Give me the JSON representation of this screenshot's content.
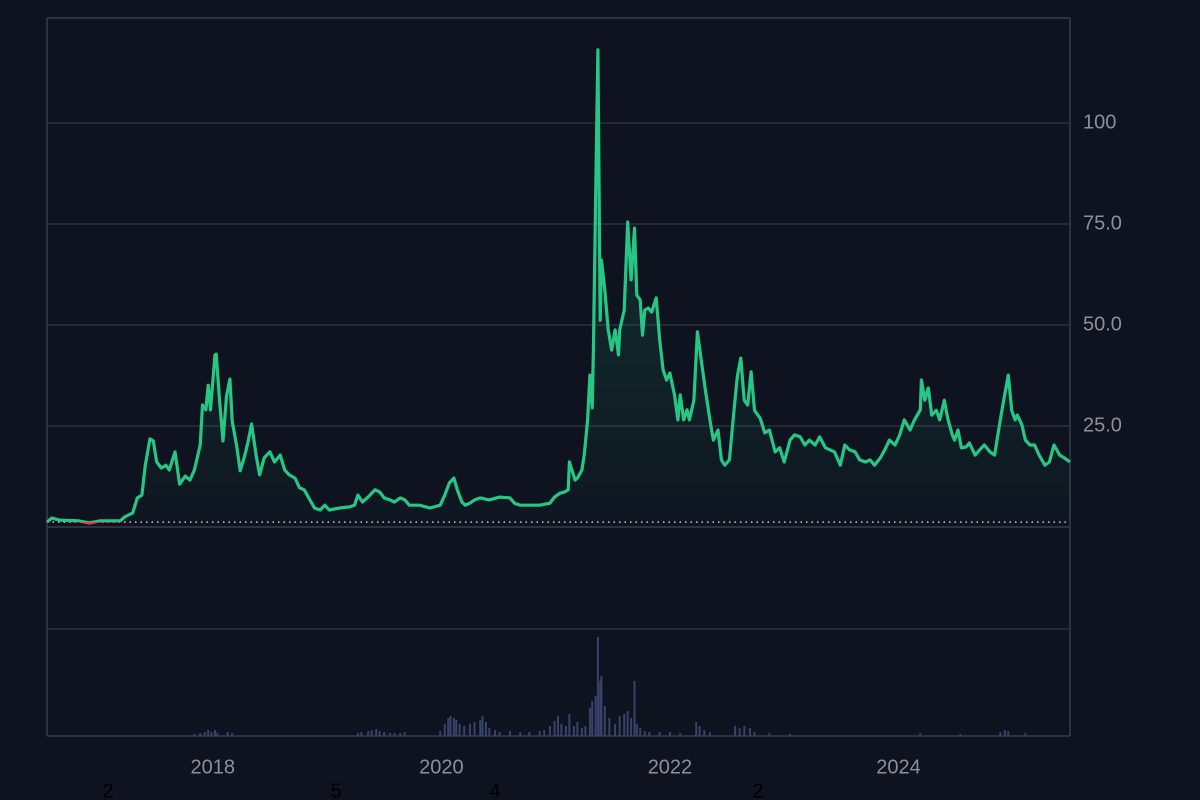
{
  "chart_data": {
    "type": "line",
    "x": [
      2016.55,
      2016.59,
      2016.66,
      2016.83,
      2016.92,
      2017.01,
      2017.19,
      2017.23,
      2017.3,
      2017.34,
      2017.38,
      2017.41,
      2017.45,
      2017.48,
      2017.51,
      2017.55,
      2017.59,
      2017.62,
      2017.67,
      2017.71,
      2017.76,
      2017.8,
      2017.84,
      2017.89,
      2017.91,
      2017.94,
      2017.96,
      2017.98,
      2018.02,
      2018.03,
      2018.06,
      2018.09,
      2018.12,
      2018.15,
      2018.17,
      2018.21,
      2018.24,
      2018.28,
      2018.31,
      2018.34,
      2018.38,
      2018.41,
      2018.45,
      2018.5,
      2018.54,
      2018.59,
      2018.63,
      2018.67,
      2018.72,
      2018.76,
      2018.8,
      2018.85,
      2018.89,
      2018.94,
      2018.98,
      2019.02,
      2019.11,
      2019.2,
      2019.24,
      2019.27,
      2019.31,
      2019.37,
      2019.42,
      2019.46,
      2019.5,
      2019.55,
      2019.59,
      2019.64,
      2019.68,
      2019.72,
      2019.81,
      2019.9,
      2019.99,
      2020.03,
      2020.07,
      2020.11,
      2020.14,
      2020.18,
      2020.21,
      2020.25,
      2020.29,
      2020.34,
      2020.42,
      2020.51,
      2020.6,
      2020.64,
      2020.69,
      2020.77,
      2020.86,
      2020.95,
      2020.99,
      2021.04,
      2021.08,
      2021.11,
      2021.12,
      2021.17,
      2021.19,
      2021.23,
      2021.25,
      2021.28,
      2021.3,
      2021.32,
      2021.33,
      2021.35,
      2021.37,
      2021.39,
      2021.4,
      2021.43,
      2021.46,
      2021.49,
      2021.52,
      2021.55,
      2021.56,
      2021.6,
      2021.63,
      2021.66,
      2021.69,
      2021.71,
      2021.74,
      2021.76,
      2021.78,
      2021.81,
      2021.84,
      2021.88,
      2021.91,
      2021.94,
      2021.97,
      2022.0,
      2022.04,
      2022.07,
      2022.09,
      2022.12,
      2022.15,
      2022.17,
      2022.21,
      2022.24,
      2022.28,
      2022.31,
      2022.35,
      2022.38,
      2022.42,
      2022.45,
      2022.48,
      2022.52,
      2022.56,
      2022.59,
      2022.62,
      2022.65,
      2022.68,
      2022.71,
      2022.74,
      2022.79,
      2022.83,
      2022.87,
      2022.92,
      2022.96,
      2023.0,
      2023.05,
      2023.09,
      2023.14,
      2023.18,
      2023.22,
      2023.27,
      2023.31,
      2023.36,
      2023.4,
      2023.44,
      2023.49,
      2023.53,
      2023.57,
      2023.62,
      2023.66,
      2023.71,
      2023.75,
      2023.79,
      2023.84,
      2023.88,
      2023.92,
      2023.97,
      2024.01,
      2024.05,
      2024.1,
      2024.14,
      2024.19,
      2024.2,
      2024.23,
      2024.26,
      2024.29,
      2024.33,
      2024.36,
      2024.4,
      2024.43,
      2024.47,
      2024.49,
      2024.52,
      2024.55,
      2024.59,
      2024.62,
      2024.67,
      2024.71,
      2024.75,
      2024.8,
      2024.84,
      2024.89,
      2024.92,
      2024.96,
      2024.99,
      2025.02,
      2025.04,
      2025.08,
      2025.11,
      2025.15,
      2025.19,
      2025.23,
      2025.28,
      2025.32,
      2025.36,
      2025.41,
      2025.45,
      2025.5
    ],
    "values": [
      1.2,
      2.2,
      1.7,
      1.5,
      1.0,
      1.5,
      1.5,
      2.5,
      3.5,
      7.2,
      7.9,
      15.3,
      21.8,
      21.3,
      16.1,
      14.6,
      15.3,
      14.1,
      18.6,
      10.6,
      12.6,
      11.6,
      14.1,
      20.3,
      30.2,
      29.0,
      35.1,
      29.0,
      42.6,
      42.8,
      31.2,
      21.3,
      32.4,
      36.6,
      26.2,
      20.0,
      13.9,
      17.6,
      21.3,
      25.5,
      17.6,
      12.9,
      17.1,
      18.6,
      16.1,
      17.8,
      14.1,
      12.9,
      12.1,
      9.7,
      9.2,
      6.7,
      4.7,
      4.2,
      5.4,
      4.2,
      4.7,
      5.0,
      5.4,
      7.9,
      6.2,
      7.7,
      9.2,
      8.7,
      7.2,
      6.7,
      6.2,
      7.2,
      6.7,
      5.4,
      5.4,
      4.7,
      5.4,
      7.9,
      10.9,
      12.1,
      9.2,
      6.2,
      5.4,
      5.9,
      6.7,
      7.2,
      6.7,
      7.4,
      7.2,
      5.9,
      5.4,
      5.4,
      5.4,
      5.9,
      7.4,
      8.4,
      8.7,
      9.2,
      16.1,
      11.6,
      12.1,
      14.1,
      17.8,
      26.5,
      37.6,
      29.5,
      43.8,
      80.9,
      118.1,
      51.2,
      66.1,
      58.7,
      48.8,
      43.8,
      48.8,
      42.6,
      48.8,
      53.7,
      75.5,
      61.2,
      74.0,
      57.4,
      56.2,
      47.5,
      53.7,
      54.2,
      53.2,
      56.7,
      46.3,
      38.9,
      36.4,
      38.1,
      32.7,
      26.5,
      32.7,
      26.5,
      29.0,
      26.5,
      31.4,
      48.3,
      40.1,
      33.9,
      26.5,
      21.5,
      24.0,
      16.6,
      15.3,
      16.6,
      28.9,
      37.4,
      41.8,
      31.4,
      30.2,
      38.4,
      28.9,
      26.9,
      23.3,
      24.0,
      18.6,
      19.6,
      16.1,
      21.5,
      22.8,
      22.3,
      20.3,
      21.5,
      20.3,
      22.3,
      19.6,
      19.1,
      18.6,
      15.3,
      20.3,
      19.1,
      18.6,
      16.6,
      16.1,
      16.6,
      15.3,
      17.1,
      19.1,
      21.5,
      20.3,
      22.8,
      26.5,
      24.0,
      26.5,
      29.0,
      36.4,
      31.4,
      34.4,
      27.7,
      28.9,
      26.5,
      31.4,
      26.9,
      22.8,
      21.5,
      24.0,
      19.6,
      19.8,
      20.8,
      17.8,
      19.1,
      20.3,
      18.6,
      17.8,
      26.5,
      31.4,
      37.6,
      28.9,
      26.5,
      27.7,
      25.2,
      21.5,
      20.3,
      20.3,
      17.8,
      15.3,
      16.1,
      20.3,
      17.8,
      17.1,
      16.1
    ],
    "color": "#26c685",
    "color_below": "#d9434f",
    "baseline": 1.2,
    "xlim": [
      2016.55,
      2025.5
    ],
    "xticks": [
      2018,
      2020,
      2022,
      2024
    ],
    "ylim": [
      0,
      126
    ],
    "yticks": [
      {
        "value": 25,
        "label": "25.0"
      },
      {
        "value": 50,
        "label": "50.0"
      },
      {
        "value": 75,
        "label": "75.0"
      },
      100
    ],
    "grid": true,
    "volume": {
      "color": "#39426b",
      "ylim": [
        0,
        107
      ],
      "x": [
        2017.84,
        2017.89,
        2017.93,
        2017.96,
        2017.99,
        2018.02,
        2018.04,
        2018.13,
        2018.17,
        2019.27,
        2019.3,
        2019.36,
        2019.39,
        2019.43,
        2019.46,
        2019.5,
        2019.55,
        2019.59,
        2019.64,
        2019.68,
        2019.99,
        2020.03,
        2020.06,
        2020.08,
        2020.11,
        2020.13,
        2020.16,
        2020.2,
        2020.25,
        2020.29,
        2020.34,
        2020.36,
        2020.39,
        2020.42,
        2020.47,
        2020.51,
        2020.6,
        2020.69,
        2020.77,
        2020.86,
        2020.9,
        2020.95,
        2020.99,
        2021.02,
        2021.05,
        2021.09,
        2021.12,
        2021.16,
        2021.19,
        2021.23,
        2021.26,
        2021.3,
        2021.32,
        2021.35,
        2021.37,
        2021.39,
        2021.4,
        2021.43,
        2021.47,
        2021.52,
        2021.56,
        2021.6,
        2021.63,
        2021.66,
        2021.69,
        2021.71,
        2021.74,
        2021.78,
        2021.82,
        2021.91,
        2022.0,
        2022.09,
        2022.23,
        2022.26,
        2022.3,
        2022.35,
        2022.57,
        2022.61,
        2022.65,
        2022.7,
        2022.74,
        2022.87,
        2023.05,
        2024.19,
        2024.54,
        2024.89,
        2024.93,
        2024.96,
        2025.11
      ],
      "values": [
        2,
        3,
        4,
        6,
        4,
        6,
        3,
        4,
        3,
        3,
        4,
        5,
        6,
        7,
        5,
        4,
        3,
        3,
        3,
        4,
        5,
        12,
        18,
        20,
        18,
        16,
        12,
        10,
        12,
        14,
        16,
        20,
        14,
        8,
        6,
        4,
        5,
        4,
        4,
        5,
        6,
        10,
        15,
        20,
        12,
        10,
        22,
        10,
        14,
        8,
        10,
        28,
        35,
        40,
        99,
        55,
        60,
        30,
        18,
        12,
        20,
        22,
        25,
        18,
        55,
        12,
        8,
        5,
        4,
        4,
        4,
        3,
        14,
        10,
        6,
        4,
        10,
        8,
        10,
        8,
        4,
        3,
        2,
        3,
        2,
        4,
        6,
        5,
        3
      ]
    },
    "bottom_labels": [
      "2",
      "5",
      "4",
      "2"
    ]
  }
}
